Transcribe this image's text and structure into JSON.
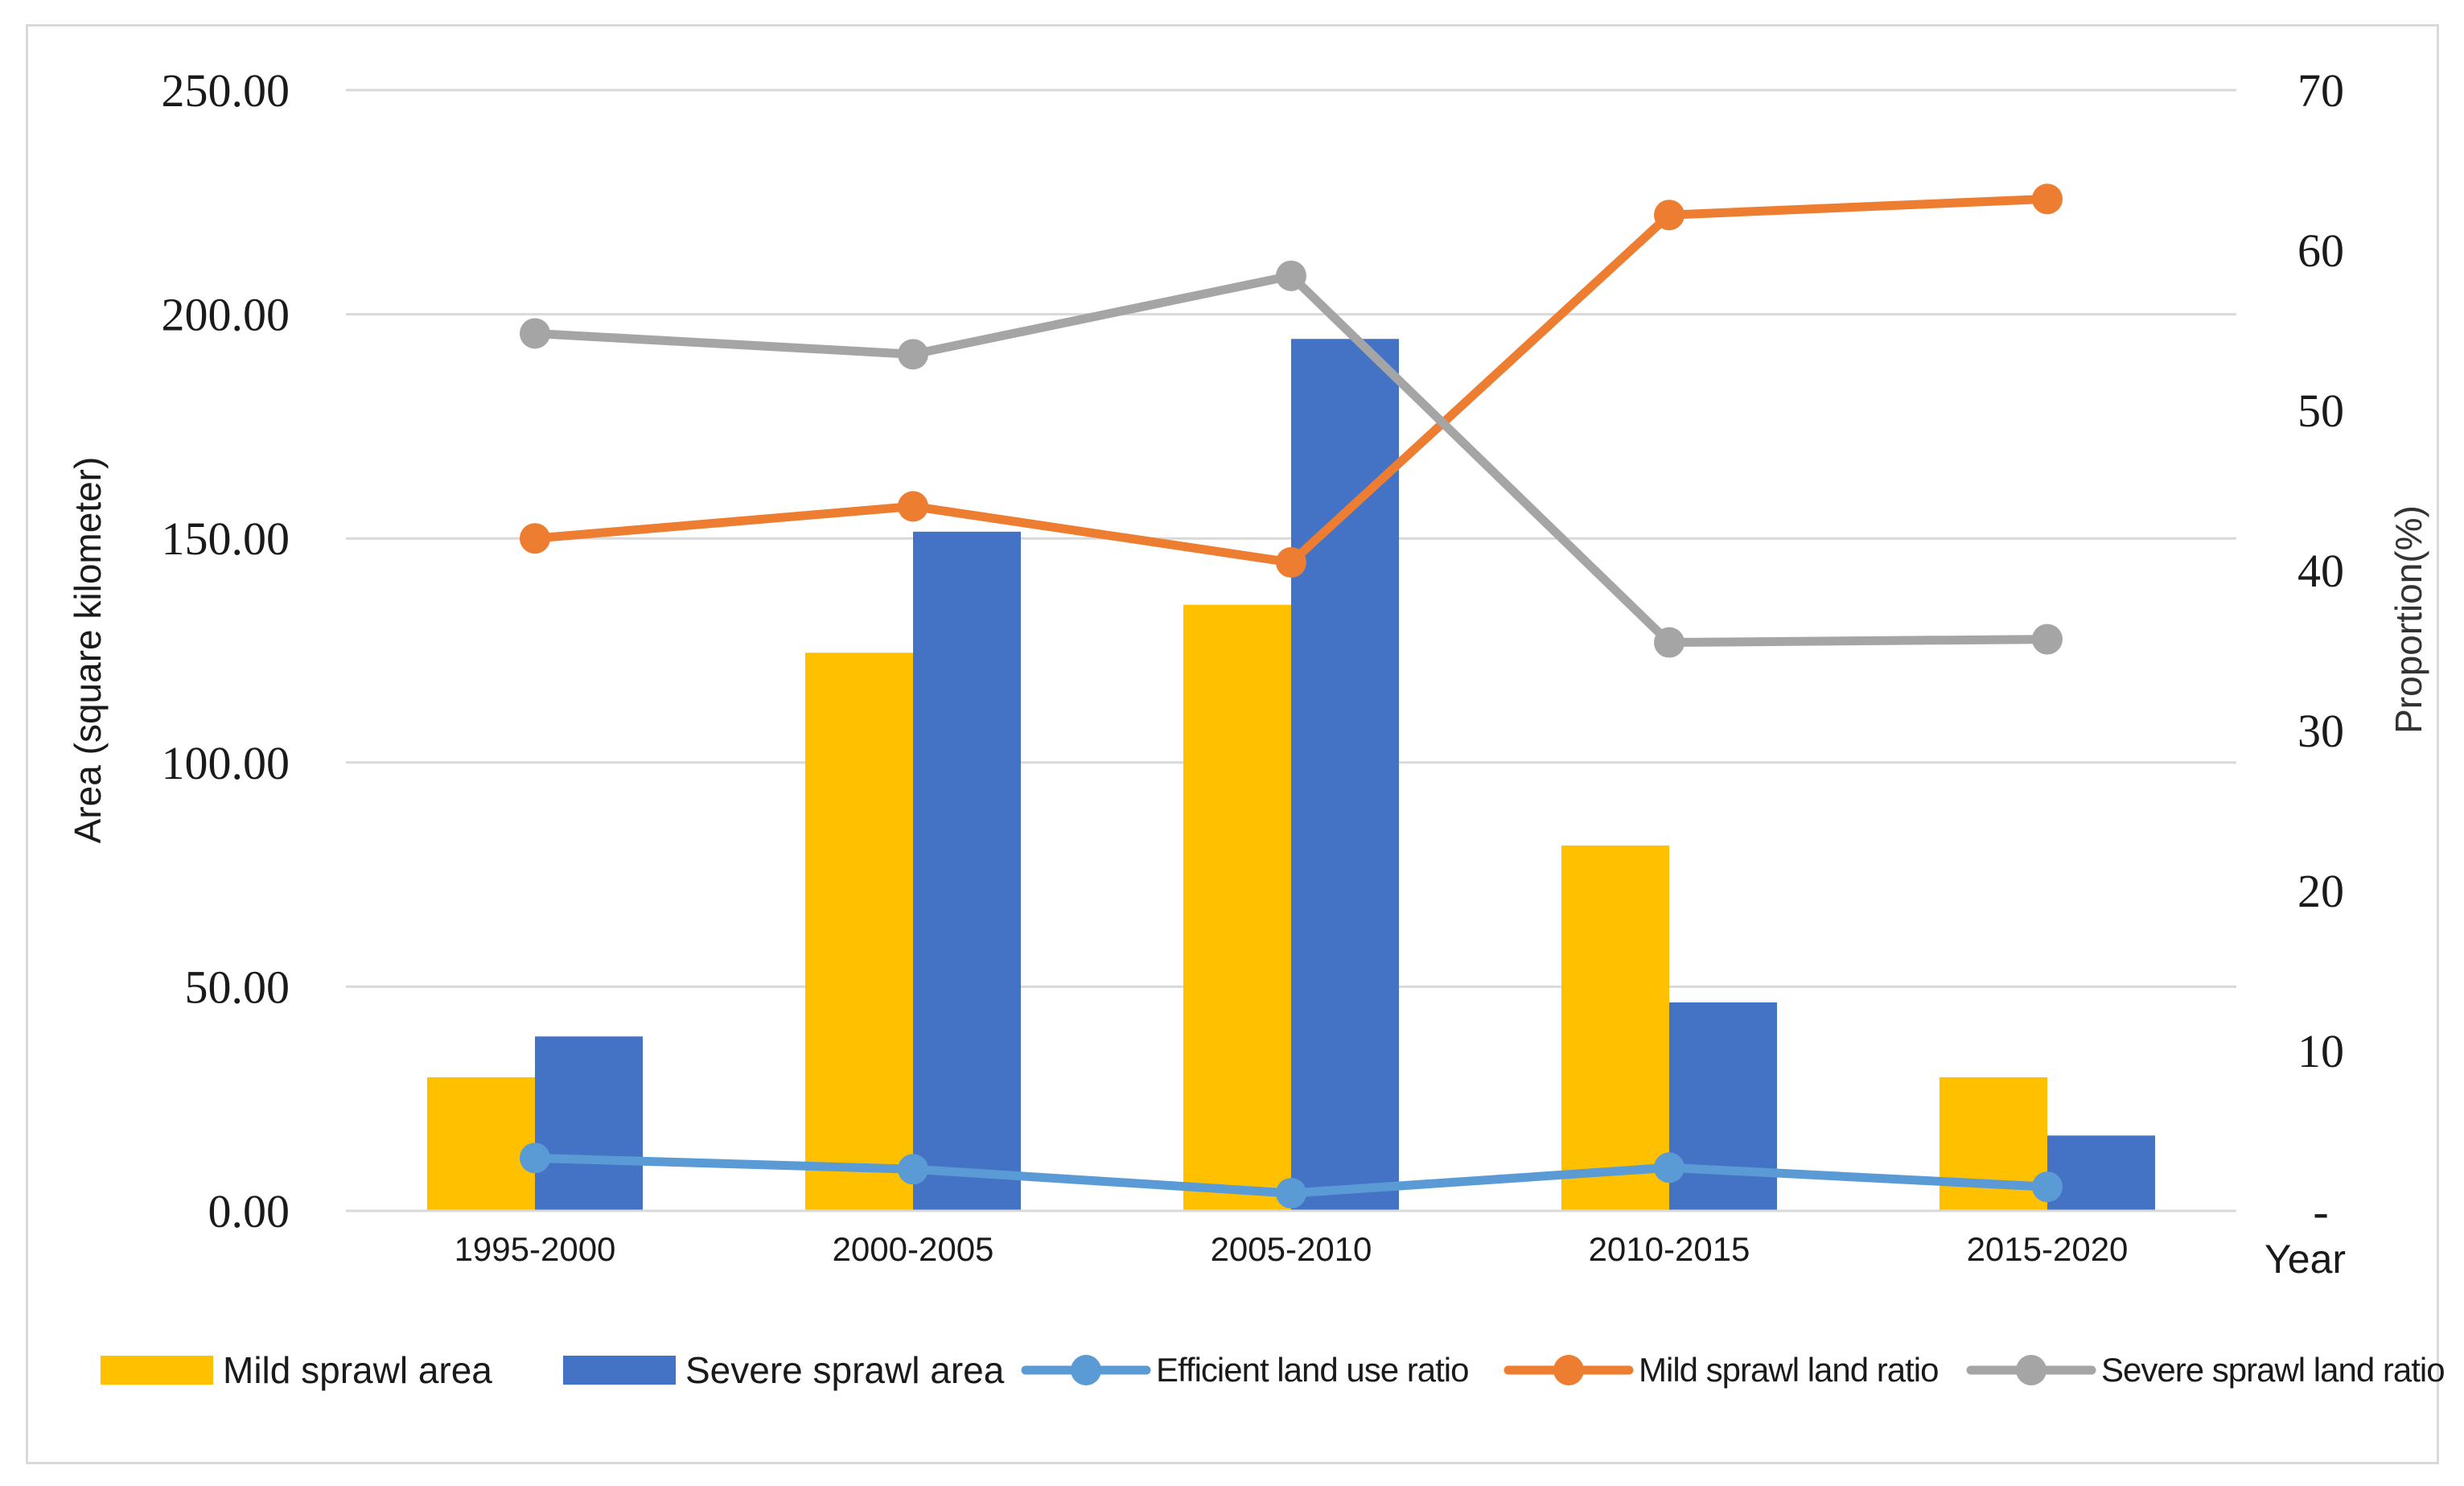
{
  "chart_data": {
    "type": "bar",
    "categories": [
      "1995-2000",
      "2000-2005",
      "2005-2010",
      "2010-2015",
      "2015-2020"
    ],
    "bar_series": [
      {
        "name": "Mild sprawl area",
        "axis": "left",
        "color": "#ffc000",
        "values": [
          29.8,
          124.5,
          135.2,
          81.5,
          29.8
        ]
      },
      {
        "name": "Severe sprawl area",
        "axis": "left",
        "color": "#4472c4",
        "values": [
          38.9,
          151.5,
          194.5,
          46.5,
          16.8
        ]
      }
    ],
    "line_series": [
      {
        "name": "Efficient land use ratio",
        "axis": "right",
        "color": "#5b9bd5",
        "values": [
          3.3,
          2.6,
          1.1,
          2.7,
          1.5
        ]
      },
      {
        "name": "Mild sprawl land ratio",
        "axis": "right",
        "color": "#ed7d31",
        "values": [
          42.0,
          44.0,
          40.5,
          62.2,
          63.2
        ]
      },
      {
        "name": "Severe sprawl land ratio",
        "axis": "right",
        "color": "#a5a5a5",
        "values": [
          54.8,
          53.5,
          58.4,
          35.5,
          35.7
        ]
      }
    ],
    "y_left": {
      "label": "Area (square kilometer)",
      "min": 0,
      "max": 250,
      "ticks": [
        "0.00",
        "50.00",
        "100.00",
        "150.00",
        "200.00",
        "250.00"
      ]
    },
    "y_right": {
      "label": "Proportion(%)",
      "min": 0,
      "max": 70,
      "ticks": [
        "-",
        "10",
        "20",
        "30",
        "40",
        "50",
        "60",
        "70"
      ]
    },
    "x_axis": {
      "label": "Year"
    },
    "legend": {
      "position": "bottom"
    },
    "gridlines": true,
    "gridline_color": "#d9d9d9"
  }
}
